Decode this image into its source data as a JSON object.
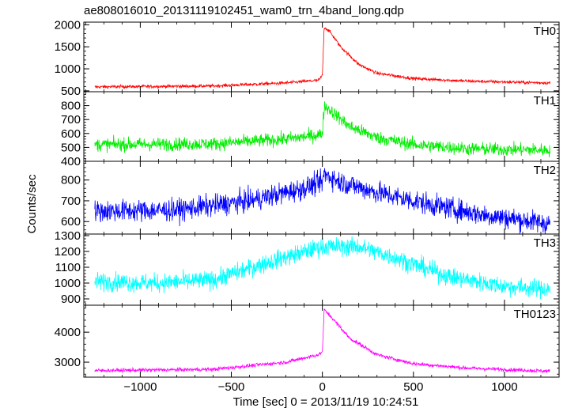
{
  "chart_data": {
    "type": "line",
    "title": "ae808016010_20131119102451_wam0_trn_4band_long.qdp",
    "xlabel": "Time [sec] 0 = 2013/11/19 10:24:51",
    "ylabel": "Counts/sec",
    "xlim": [
      -1310,
      1300
    ],
    "x_ticks": [
      -1000,
      -500,
      0,
      500,
      1000
    ],
    "x_tick_labels": [
      "−1000",
      "−500",
      "0",
      "500",
      "1000"
    ],
    "data_x_range": [
      -1250,
      1250
    ],
    "grid": false,
    "panels": [
      {
        "name": "TH0",
        "color": "#ff0000",
        "ylim": [
          480,
          2060
        ],
        "y_ticks": [
          500,
          1000,
          1500,
          2000
        ],
        "profile": {
          "x": [
            -1250,
            -600,
            -200,
            -20,
            0,
            10,
            40,
            100,
            200,
            300,
            500,
            800,
            1250
          ],
          "y": [
            590,
            610,
            680,
            740,
            850,
            1950,
            1850,
            1500,
            1100,
            900,
            780,
            720,
            680
          ]
        },
        "noise_amplitude": 35
      },
      {
        "name": "TH1",
        "color": "#00ee00",
        "ylim": [
          400,
          900
        ],
        "y_ticks": [
          400,
          500,
          600,
          700,
          800
        ],
        "profile": {
          "x": [
            -1250,
            -600,
            -200,
            -20,
            0,
            10,
            50,
            150,
            300,
            500,
            800,
            1250
          ],
          "y": [
            520,
            525,
            560,
            590,
            600,
            800,
            760,
            650,
            570,
            520,
            490,
            480
          ]
        },
        "noise_amplitude": 45
      },
      {
        "name": "TH2",
        "color": "#0000ff",
        "ylim": [
          540,
          890
        ],
        "y_ticks": [
          600,
          700,
          800
        ],
        "profile": {
          "x": [
            -1250,
            -800,
            -400,
            -100,
            0,
            10,
            100,
            300,
            600,
            900,
            1250
          ],
          "y": [
            650,
            655,
            700,
            760,
            790,
            830,
            790,
            740,
            680,
            630,
            590
          ]
        },
        "noise_amplitude": 50
      },
      {
        "name": "TH3",
        "color": "#00ffff",
        "ylim": [
          860,
          1310
        ],
        "y_ticks": [
          900,
          1000,
          1100,
          1200,
          1300
        ],
        "profile": {
          "x": [
            -1250,
            -900,
            -600,
            -300,
            0,
            200,
            400,
            700,
            1000,
            1250
          ],
          "y": [
            1010,
            1000,
            1020,
            1130,
            1230,
            1230,
            1160,
            1040,
            980,
            960
          ]
        },
        "noise_amplitude": 55
      },
      {
        "name": "TH0123",
        "color": "#ff00ff",
        "ylim": [
          2500,
          4900
        ],
        "y_ticks": [
          3000,
          4000
        ],
        "profile": {
          "x": [
            -1250,
            -600,
            -200,
            -20,
            0,
            10,
            50,
            150,
            300,
            500,
            800,
            1250
          ],
          "y": [
            2720,
            2760,
            3000,
            3250,
            3350,
            4750,
            4500,
            3800,
            3250,
            2950,
            2800,
            2700
          ]
        },
        "noise_amplitude": 60
      }
    ]
  }
}
